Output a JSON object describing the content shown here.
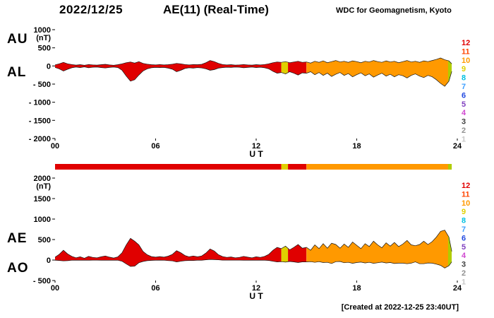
{
  "header": {
    "date": "2022/12/25",
    "title": "AE(11) (Real-Time)",
    "source": "WDC for Geomagnetism, Kyoto"
  },
  "footer": {
    "created_note": "[Created at 2022-12-25 23:40UT]"
  },
  "chart_data": {
    "type": "area",
    "title": "AE(11) (Real-Time)",
    "date": "2022/12/25",
    "y_unit": "nT",
    "xaxis": {
      "label": "U T",
      "range": [
        0,
        24
      ],
      "ticks": [
        {
          "v": 0,
          "label": "00"
        },
        {
          "v": 6,
          "label": "06"
        },
        {
          "v": 12,
          "label": "12"
        },
        {
          "v": 18,
          "label": "18"
        },
        {
          "v": 24,
          "label": "24"
        }
      ]
    },
    "panels": [
      {
        "name": "AU-AL",
        "left_labels": [
          "AU",
          "AL"
        ],
        "unit": "(nT)",
        "ylim": [
          -2000,
          1000
        ],
        "upper": "AU",
        "lower": "AL",
        "yticks": [
          {
            "v": 1000,
            "label": "1000"
          },
          {
            "v": 500,
            "label": "500"
          },
          {
            "v": 0,
            "label": "0"
          },
          {
            "v": -500,
            "label": "- 500"
          },
          {
            "v": -1000,
            "label": "- 1000"
          },
          {
            "v": -1500,
            "label": "- 1500"
          },
          {
            "v": -2000,
            "label": "- 2000"
          }
        ]
      },
      {
        "name": "AE-AO",
        "left_labels": [
          "AE",
          "AO"
        ],
        "unit": "(nT)",
        "ylim": [
          -500,
          2000
        ],
        "upper": "AE",
        "lower": "AO",
        "yticks": [
          {
            "v": 2000,
            "label": "2000"
          },
          {
            "v": 1500,
            "label": "1500"
          },
          {
            "v": 1000,
            "label": "1000"
          },
          {
            "v": 500,
            "label": "500"
          },
          {
            "v": 0,
            "label": "0"
          },
          {
            "v": -500,
            "label": "- 500"
          }
        ]
      }
    ],
    "x": [
      0,
      0.25,
      0.5,
      0.75,
      1,
      1.25,
      1.5,
      1.75,
      2,
      2.25,
      2.5,
      2.75,
      3,
      3.25,
      3.5,
      3.75,
      4,
      4.25,
      4.5,
      4.75,
      5,
      5.25,
      5.5,
      5.75,
      6,
      6.25,
      6.5,
      6.75,
      7,
      7.25,
      7.5,
      7.75,
      8,
      8.25,
      8.5,
      8.75,
      9,
      9.25,
      9.5,
      9.75,
      10,
      10.25,
      10.5,
      10.75,
      11,
      11.25,
      11.5,
      11.75,
      12,
      12.25,
      12.5,
      12.75,
      13,
      13.25,
      13.5,
      13.75,
      14,
      14.25,
      14.5,
      14.75,
      15,
      15.25,
      15.5,
      15.75,
      16,
      16.25,
      16.5,
      16.75,
      17,
      17.25,
      17.5,
      17.75,
      18,
      18.25,
      18.5,
      18.75,
      19,
      19.25,
      19.5,
      19.75,
      20,
      20.25,
      20.5,
      20.75,
      21,
      21.25,
      21.5,
      21.75,
      22,
      22.25,
      22.5,
      22.75,
      23,
      23.25,
      23.5,
      23.67
    ],
    "series": [
      {
        "name": "AU",
        "values": [
          30,
          60,
          100,
          60,
          40,
          25,
          35,
          20,
          40,
          30,
          25,
          35,
          45,
          30,
          20,
          35,
          60,
          90,
          110,
          80,
          120,
          70,
          50,
          35,
          30,
          40,
          30,
          35,
          50,
          70,
          60,
          40,
          30,
          40,
          35,
          45,
          90,
          150,
          120,
          70,
          40,
          30,
          35,
          25,
          30,
          40,
          30,
          25,
          35,
          30,
          40,
          60,
          90,
          110,
          100,
          120,
          90,
          110,
          130,
          100,
          110,
          80,
          130,
          100,
          140,
          90,
          120,
          150,
          110,
          130,
          100,
          140,
          120,
          90,
          130,
          110,
          150,
          120,
          100,
          140,
          110,
          130,
          90,
          120,
          150,
          110,
          130,
          100,
          140,
          120,
          150,
          180,
          220,
          170,
          140,
          60
        ]
      },
      {
        "name": "AL",
        "values": [
          -40,
          -80,
          -140,
          -90,
          -50,
          -30,
          -45,
          -25,
          -50,
          -35,
          -30,
          -45,
          -55,
          -40,
          -30,
          -45,
          -120,
          -280,
          -420,
          -380,
          -250,
          -140,
          -80,
          -50,
          -40,
          -45,
          -40,
          -60,
          -90,
          -160,
          -120,
          -70,
          -50,
          -60,
          -45,
          -55,
          -80,
          -120,
          -100,
          -60,
          -45,
          -35,
          -40,
          -30,
          -35,
          -50,
          -40,
          -30,
          -45,
          -35,
          -50,
          -80,
          -150,
          -200,
          -180,
          -220,
          -160,
          -200,
          -250,
          -190,
          -200,
          -160,
          -240,
          -180,
          -260,
          -200,
          -290,
          -230,
          -180,
          -260,
          -210,
          -300,
          -240,
          -190,
          -270,
          -220,
          -310,
          -250,
          -200,
          -280,
          -230,
          -300,
          -240,
          -270,
          -330,
          -260,
          -220,
          -280,
          -320,
          -260,
          -300,
          -380,
          -480,
          -560,
          -420,
          -150
        ]
      },
      {
        "name": "AE",
        "values": [
          70,
          140,
          240,
          150,
          90,
          55,
          80,
          45,
          90,
          65,
          55,
          80,
          100,
          70,
          50,
          80,
          180,
          370,
          530,
          460,
          370,
          210,
          130,
          85,
          70,
          85,
          70,
          95,
          140,
          230,
          180,
          110,
          80,
          100,
          80,
          100,
          170,
          270,
          220,
          130,
          85,
          65,
          75,
          55,
          65,
          90,
          70,
          55,
          80,
          65,
          90,
          140,
          240,
          310,
          280,
          340,
          250,
          310,
          380,
          290,
          310,
          240,
          370,
          280,
          400,
          290,
          410,
          380,
          290,
          390,
          310,
          440,
          360,
          280,
          400,
          330,
          460,
          370,
          300,
          420,
          340,
          430,
          330,
          390,
          480,
          370,
          350,
          380,
          460,
          380,
          450,
          560,
          700,
          730,
          560,
          210
        ]
      },
      {
        "name": "AO",
        "values": [
          -5,
          -10,
          -20,
          -15,
          -5,
          -3,
          -5,
          -3,
          -5,
          -3,
          -3,
          -5,
          -5,
          -5,
          -5,
          -5,
          -30,
          -95,
          -155,
          -150,
          -65,
          -35,
          -15,
          -8,
          -5,
          -3,
          -5,
          -13,
          -20,
          -45,
          -30,
          -15,
          -10,
          -10,
          -5,
          -5,
          5,
          15,
          10,
          5,
          -3,
          -3,
          -3,
          -3,
          -3,
          -5,
          -5,
          -3,
          -5,
          -3,
          -5,
          -10,
          -30,
          -45,
          -40,
          -50,
          -35,
          -45,
          -60,
          -45,
          -45,
          -40,
          -55,
          -40,
          -60,
          -55,
          -85,
          -40,
          -35,
          -65,
          -55,
          -80,
          -60,
          -50,
          -70,
          -55,
          -80,
          -65,
          -50,
          -70,
          -60,
          -85,
          -75,
          -75,
          -90,
          -75,
          -45,
          -90,
          -90,
          -70,
          -75,
          -100,
          -130,
          -195,
          -140,
          -45
        ]
      }
    ],
    "station_count_legend": [
      {
        "n": "12",
        "color": "#e00000"
      },
      {
        "n": "11",
        "color": "#ff4400"
      },
      {
        "n": "10",
        "color": "#ff9900"
      },
      {
        "n": "9",
        "color": "#e0d000"
      },
      {
        "n": "8",
        "color": "#00c0e0"
      },
      {
        "n": "7",
        "color": "#40a0ff"
      },
      {
        "n": "6",
        "color": "#2048e0"
      },
      {
        "n": "5",
        "color": "#8040c0"
      },
      {
        "n": "4",
        "color": "#d048d0"
      },
      {
        "n": "3",
        "color": "#404040"
      },
      {
        "n": "2",
        "color": "#909090"
      },
      {
        "n": "1",
        "color": "#c8c8c8"
      }
    ],
    "colorbar_segments": [
      {
        "start": 0,
        "end": 13.5,
        "color": "#e00000"
      },
      {
        "start": 13.5,
        "end": 13.9,
        "color": "#e0d000"
      },
      {
        "start": 13.9,
        "end": 15.0,
        "color": "#e00000"
      },
      {
        "start": 15.0,
        "end": 23.45,
        "color": "#ff9900"
      },
      {
        "start": 23.45,
        "end": 23.67,
        "color": "#b0cc00"
      }
    ]
  }
}
